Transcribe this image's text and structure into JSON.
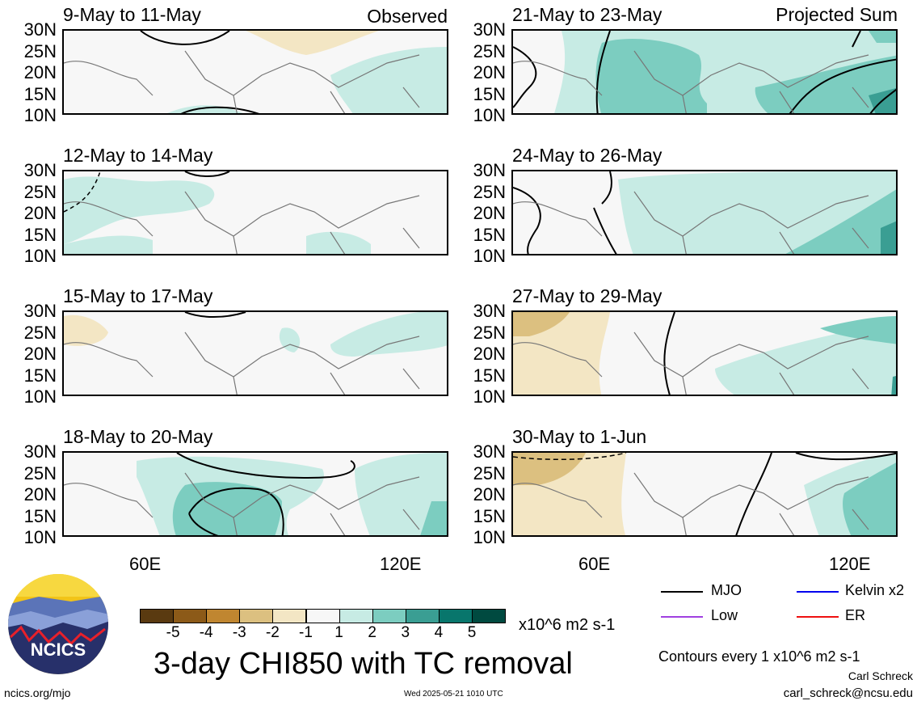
{
  "panels": [
    {
      "id": "obs1",
      "title": "9-May to 11-May",
      "corner_label": "Observed"
    },
    {
      "id": "obs2",
      "title": "12-May to 14-May",
      "corner_label": ""
    },
    {
      "id": "obs3",
      "title": "15-May to 17-May",
      "corner_label": ""
    },
    {
      "id": "obs4",
      "title": "18-May to 20-May",
      "corner_label": ""
    },
    {
      "id": "proj1",
      "title": "21-May to 23-May",
      "corner_label": "Projected Sum"
    },
    {
      "id": "proj2",
      "title": "24-May to 26-May",
      "corner_label": ""
    },
    {
      "id": "proj3",
      "title": "27-May to 29-May",
      "corner_label": ""
    },
    {
      "id": "proj4",
      "title": "30-May to 1-Jun",
      "corner_label": ""
    }
  ],
  "y_ticks": [
    "30N",
    "25N",
    "20N",
    "15N",
    "10N"
  ],
  "x_ticks": [
    "60E",
    "120E"
  ],
  "colorbar": {
    "colors": [
      "#5a3a10",
      "#8c5a18",
      "#c08630",
      "#dcc080",
      "#f3e6c4",
      "#f7f7f7",
      "#c7ebe4",
      "#7ccdc0",
      "#3a9e93",
      "#08766c",
      "#004a40"
    ],
    "labels": [
      "-5",
      "-4",
      "-3",
      "-2",
      "-1",
      "1",
      "2",
      "3",
      "4",
      "5"
    ],
    "units": "x10^6 m2 s-1"
  },
  "title": "3-day CHI850 with TC removal",
  "legend": [
    {
      "label": "MJO",
      "color": "#000000"
    },
    {
      "label": "Kelvin x2",
      "color": "#0000ee"
    },
    {
      "label": "Low",
      "color": "#a040e0"
    },
    {
      "label": "ER",
      "color": "#ee1010"
    }
  ],
  "contour_note": "Contours every 1 x10^6 m2 s-1",
  "author": "Carl Schreck",
  "email": "carl_schreck@ncsu.edu",
  "website": "ncics.org/mjo",
  "timestamp": "Wed 2025-05-21 1010 UTC",
  "logo_text": "NCICS"
}
